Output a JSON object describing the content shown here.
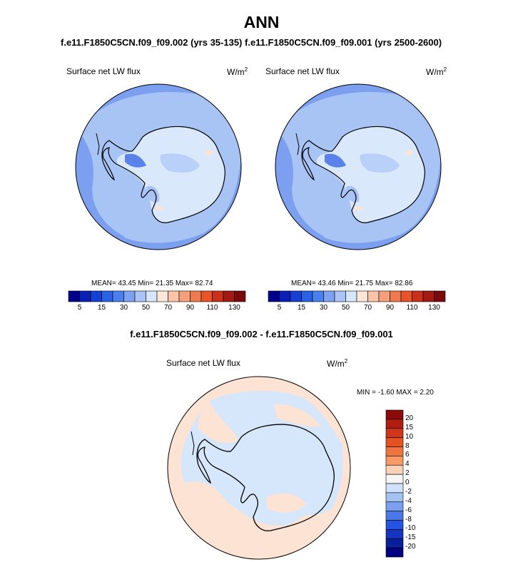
{
  "page": {
    "main_title": "ANN",
    "panels": [
      {
        "case_title": "f.e11.F1850C5CN.f09_f09.002 (yrs 35-135)",
        "variable": "Surface net LW flux",
        "units_base": "W/m",
        "units_exp": "2",
        "stats": "MEAN=  43.45  Min=  21.35  Max=  82.74",
        "colorbar_ticks": [
          "5",
          "15",
          "30",
          "50",
          "70",
          "90",
          "110",
          "130"
        ]
      },
      {
        "case_title": "f.e11.F1850C5CN.f09_f09.001 (yrs 2500-2600)",
        "variable": "Surface net LW flux",
        "units_base": "W/m",
        "units_exp": "2",
        "stats": "MEAN=  43.46  Min=  21.75  Max=  82.86",
        "colorbar_ticks": [
          "5",
          "15",
          "30",
          "50",
          "70",
          "90",
          "110",
          "130"
        ]
      }
    ],
    "diff_panel": {
      "title": "f.e11.F1850C5CN.f09_f09.002 - f.e11.F1850C5CN.f09_f09.001",
      "variable": "Surface net LW flux",
      "units_base": "W/m",
      "units_exp": "2",
      "stats": "MIN =  -1.60 MAX =   2.20",
      "colorbar_ticks": [
        "20",
        "15",
        "10",
        "8",
        "6",
        "4",
        "2",
        "0",
        "-2",
        "-4",
        "-6",
        "-8",
        "-10",
        "-15",
        "-20"
      ]
    }
  },
  "colors": {
    "abs_scale": [
      "#00008b",
      "#0a1fb3",
      "#1540d4",
      "#2a62e6",
      "#4a80ee",
      "#7ea2f1",
      "#aac4f5",
      "#d6e6fb",
      "#fde6d8",
      "#f9c4a8",
      "#f5a07c",
      "#f07a50",
      "#e8532a",
      "#c8321c",
      "#a21a12",
      "#7a0a0a"
    ],
    "diff_scale": [
      "#8b0a0a",
      "#b01e10",
      "#d0361a",
      "#e45224",
      "#f0743e",
      "#f69a68",
      "#fad0b6",
      "#f5f5f5",
      "#d0e2fb",
      "#a4c2f2",
      "#7aa0ee",
      "#4a78ea",
      "#2554e0",
      "#1535c0",
      "#0a1f9a",
      "#000080"
    ],
    "ocean_cool": "#a8c4f5",
    "ocean_mid": "#7c9ff0",
    "ocean_dark": "#5b82ea",
    "land_light": "#d9e8fb",
    "warm_pink": "#fde3d3",
    "diff_pos": "#fde3d3",
    "diff_neg": "#d6e6fb"
  }
}
